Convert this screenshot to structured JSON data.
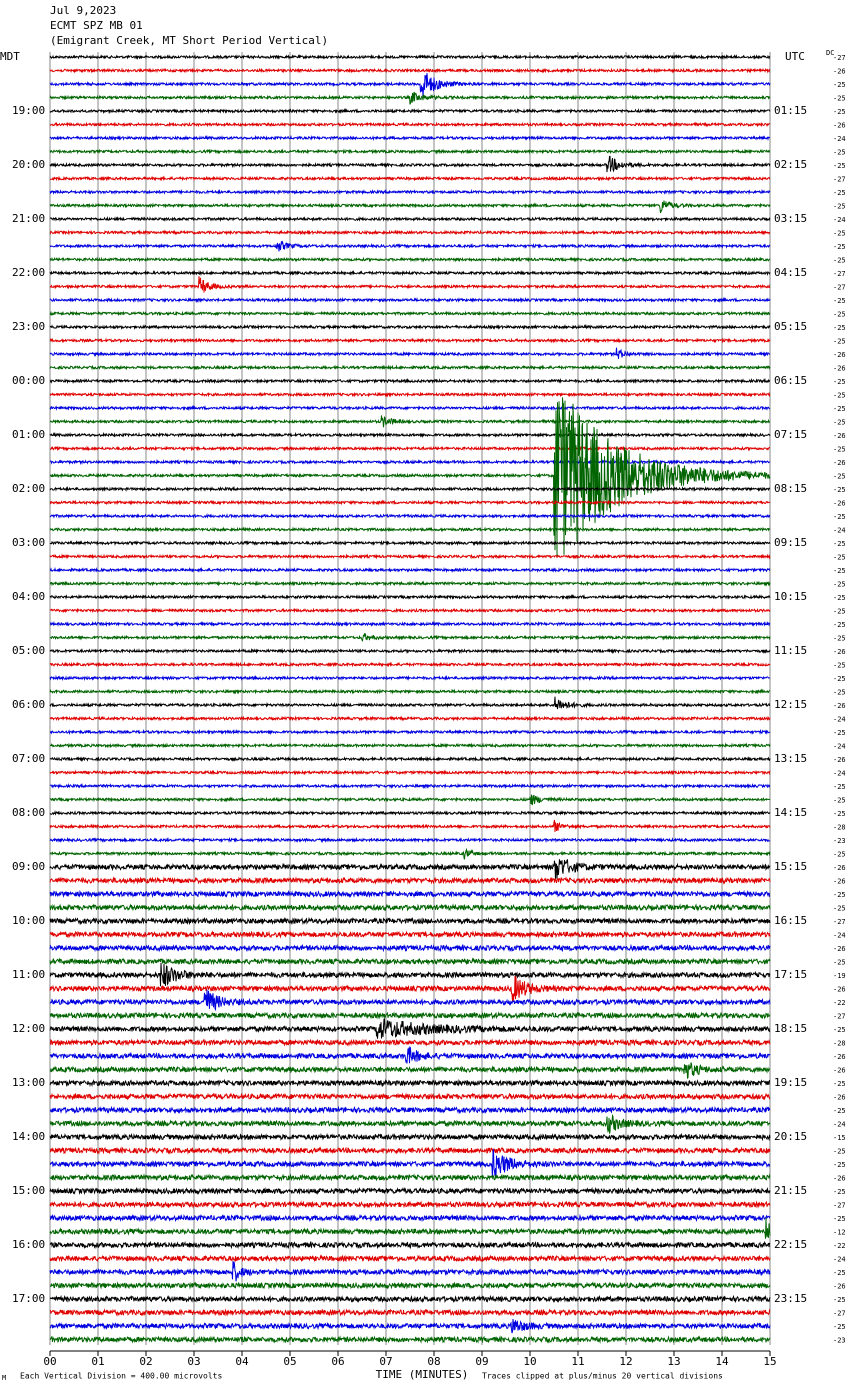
{
  "header": {
    "date": "Jul 9,2023",
    "station": "ECMT SPZ MB 01",
    "location": "(Emigrant Creek, MT Short Period Vertical)"
  },
  "left_axis": {
    "title": "MDT",
    "labels": [
      "19:00",
      "20:00",
      "21:00",
      "22:00",
      "23:00",
      "00:00",
      "01:00",
      "02:00",
      "03:00",
      "04:00",
      "05:00",
      "06:00",
      "07:00",
      "08:00",
      "09:00",
      "10:00",
      "11:00",
      "12:00",
      "13:00",
      "14:00",
      "15:00",
      "16:00",
      "17:00"
    ]
  },
  "right_axis": {
    "title": "UTC",
    "labels": [
      "01:15",
      "02:15",
      "03:15",
      "04:15",
      "05:15",
      "06:15",
      "07:15",
      "08:15",
      "09:15",
      "10:15",
      "11:15",
      "12:15",
      "13:15",
      "14:15",
      "15:15",
      "16:15",
      "17:15",
      "18:15",
      "19:15",
      "20:15",
      "21:15",
      "22:15",
      "23:15"
    ]
  },
  "dc": {
    "title": "DC",
    "offsets": [
      "-27",
      "-26",
      "-25",
      "-25",
      "-25",
      "-26",
      "-24",
      "-25",
      "-25",
      "-27",
      "-25",
      "-25",
      "-24",
      "-25",
      "-25",
      "-25",
      "-27",
      "-27",
      "-25",
      "-25",
      "-25",
      "-25",
      "-26",
      "-26",
      "-25",
      "-25",
      "-25",
      "-25",
      "-26",
      "-25",
      "-26",
      "-25",
      "-25",
      "-26",
      "-25",
      "-24",
      "-25",
      "-25",
      "-25",
      "-25",
      "-25",
      "-25",
      "-25",
      "-25",
      "-26",
      "-25",
      "-25",
      "-25",
      "-26",
      "-24",
      "-25",
      "-24",
      "-26",
      "-24",
      "-25",
      "-25",
      "-25",
      "-28",
      "-23",
      "-25",
      "-26",
      "-26",
      "-25",
      "-25",
      "-27",
      "-24",
      "-26",
      "-25",
      "-19",
      "-26",
      "-22",
      "-27",
      "-25",
      "-28",
      "-26",
      "-26",
      "-25",
      "-26",
      "-25",
      "-24",
      "-15",
      "-25",
      "-25",
      "-26",
      "-25",
      "-27",
      "-25",
      "-12",
      "-22",
      "-24",
      "-25",
      "-26",
      "-25",
      "-27",
      "-25",
      "-23"
    ]
  },
  "x_axis": {
    "title": "TIME (MINUTES)",
    "labels": [
      "00",
      "01",
      "02",
      "03",
      "04",
      "05",
      "06",
      "07",
      "08",
      "09",
      "10",
      "11",
      "12",
      "13",
      "14",
      "15"
    ]
  },
  "footer": {
    "scale": "Each Vertical Division =  400.00 microvolts",
    "clip": "Traces clipped at plus/minus 20 vertical divisions"
  }
}
